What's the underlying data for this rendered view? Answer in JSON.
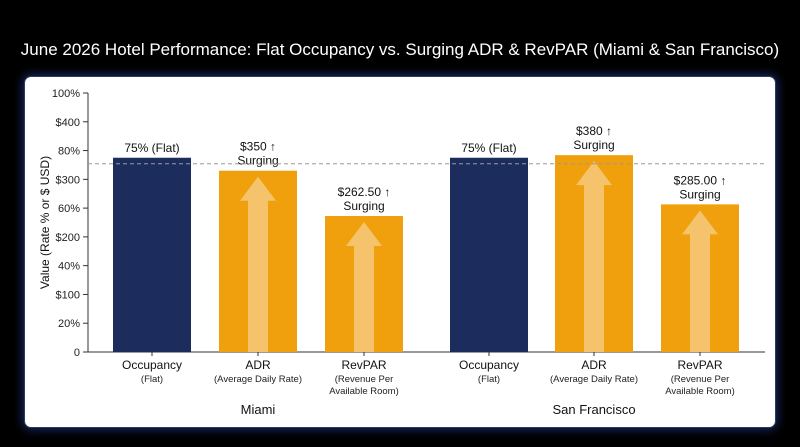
{
  "title": "June 2026 Hotel Performance: Flat Occupancy vs. Surging ADR & RevPAR (Miami & San Francisco)",
  "chart_data": {
    "type": "bar",
    "ylabel": "Value (Rate % or $ USD)",
    "y_tick_labels": [
      "0",
      "20%",
      "$100",
      "40%",
      "$200",
      "60%",
      "$300",
      "80%",
      "$400",
      "100%"
    ],
    "reference_line": "dashed gray at 75%",
    "colors": {
      "flat": "#1c2c5c",
      "surging": "#f0a00c",
      "arrow": "#f6cf8c"
    },
    "groups": [
      {
        "name": "Miami",
        "bars": [
          {
            "label": "Occupancy",
            "sublabel": [
              "(Flat)"
            ],
            "value": 75,
            "unit": "%",
            "data_label": [
              "75% (Flat)"
            ],
            "kind": "flat"
          },
          {
            "label": "ADR",
            "sublabel": [
              "(Average Daily Rate)"
            ],
            "value": 350,
            "unit": "$",
            "data_label": [
              "$350 ↑",
              "Surging"
            ],
            "kind": "surging"
          },
          {
            "label": "RevPAR",
            "sublabel": [
              "(Revenue Per",
              "Available Room)"
            ],
            "value": 262.5,
            "unit": "$",
            "data_label": [
              "$262.50 ↑",
              "Surging"
            ],
            "kind": "surging"
          }
        ]
      },
      {
        "name": "San Francisco",
        "bars": [
          {
            "label": "Occupancy",
            "sublabel": [
              "(Flat)"
            ],
            "value": 75,
            "unit": "%",
            "data_label": [
              "75% (Flat)"
            ],
            "kind": "flat"
          },
          {
            "label": "ADR",
            "sublabel": [
              "(Average Daily Rate)"
            ],
            "value": 380,
            "unit": "$",
            "data_label": [
              "$380 ↑",
              "Surging"
            ],
            "kind": "surging"
          },
          {
            "label": "RevPAR",
            "sublabel": [
              "(Revenue Per",
              "Available Room)"
            ],
            "value": 285,
            "unit": "$",
            "data_label": [
              "$285.00 ↑",
              "Surging"
            ],
            "kind": "surging"
          }
        ]
      }
    ]
  }
}
